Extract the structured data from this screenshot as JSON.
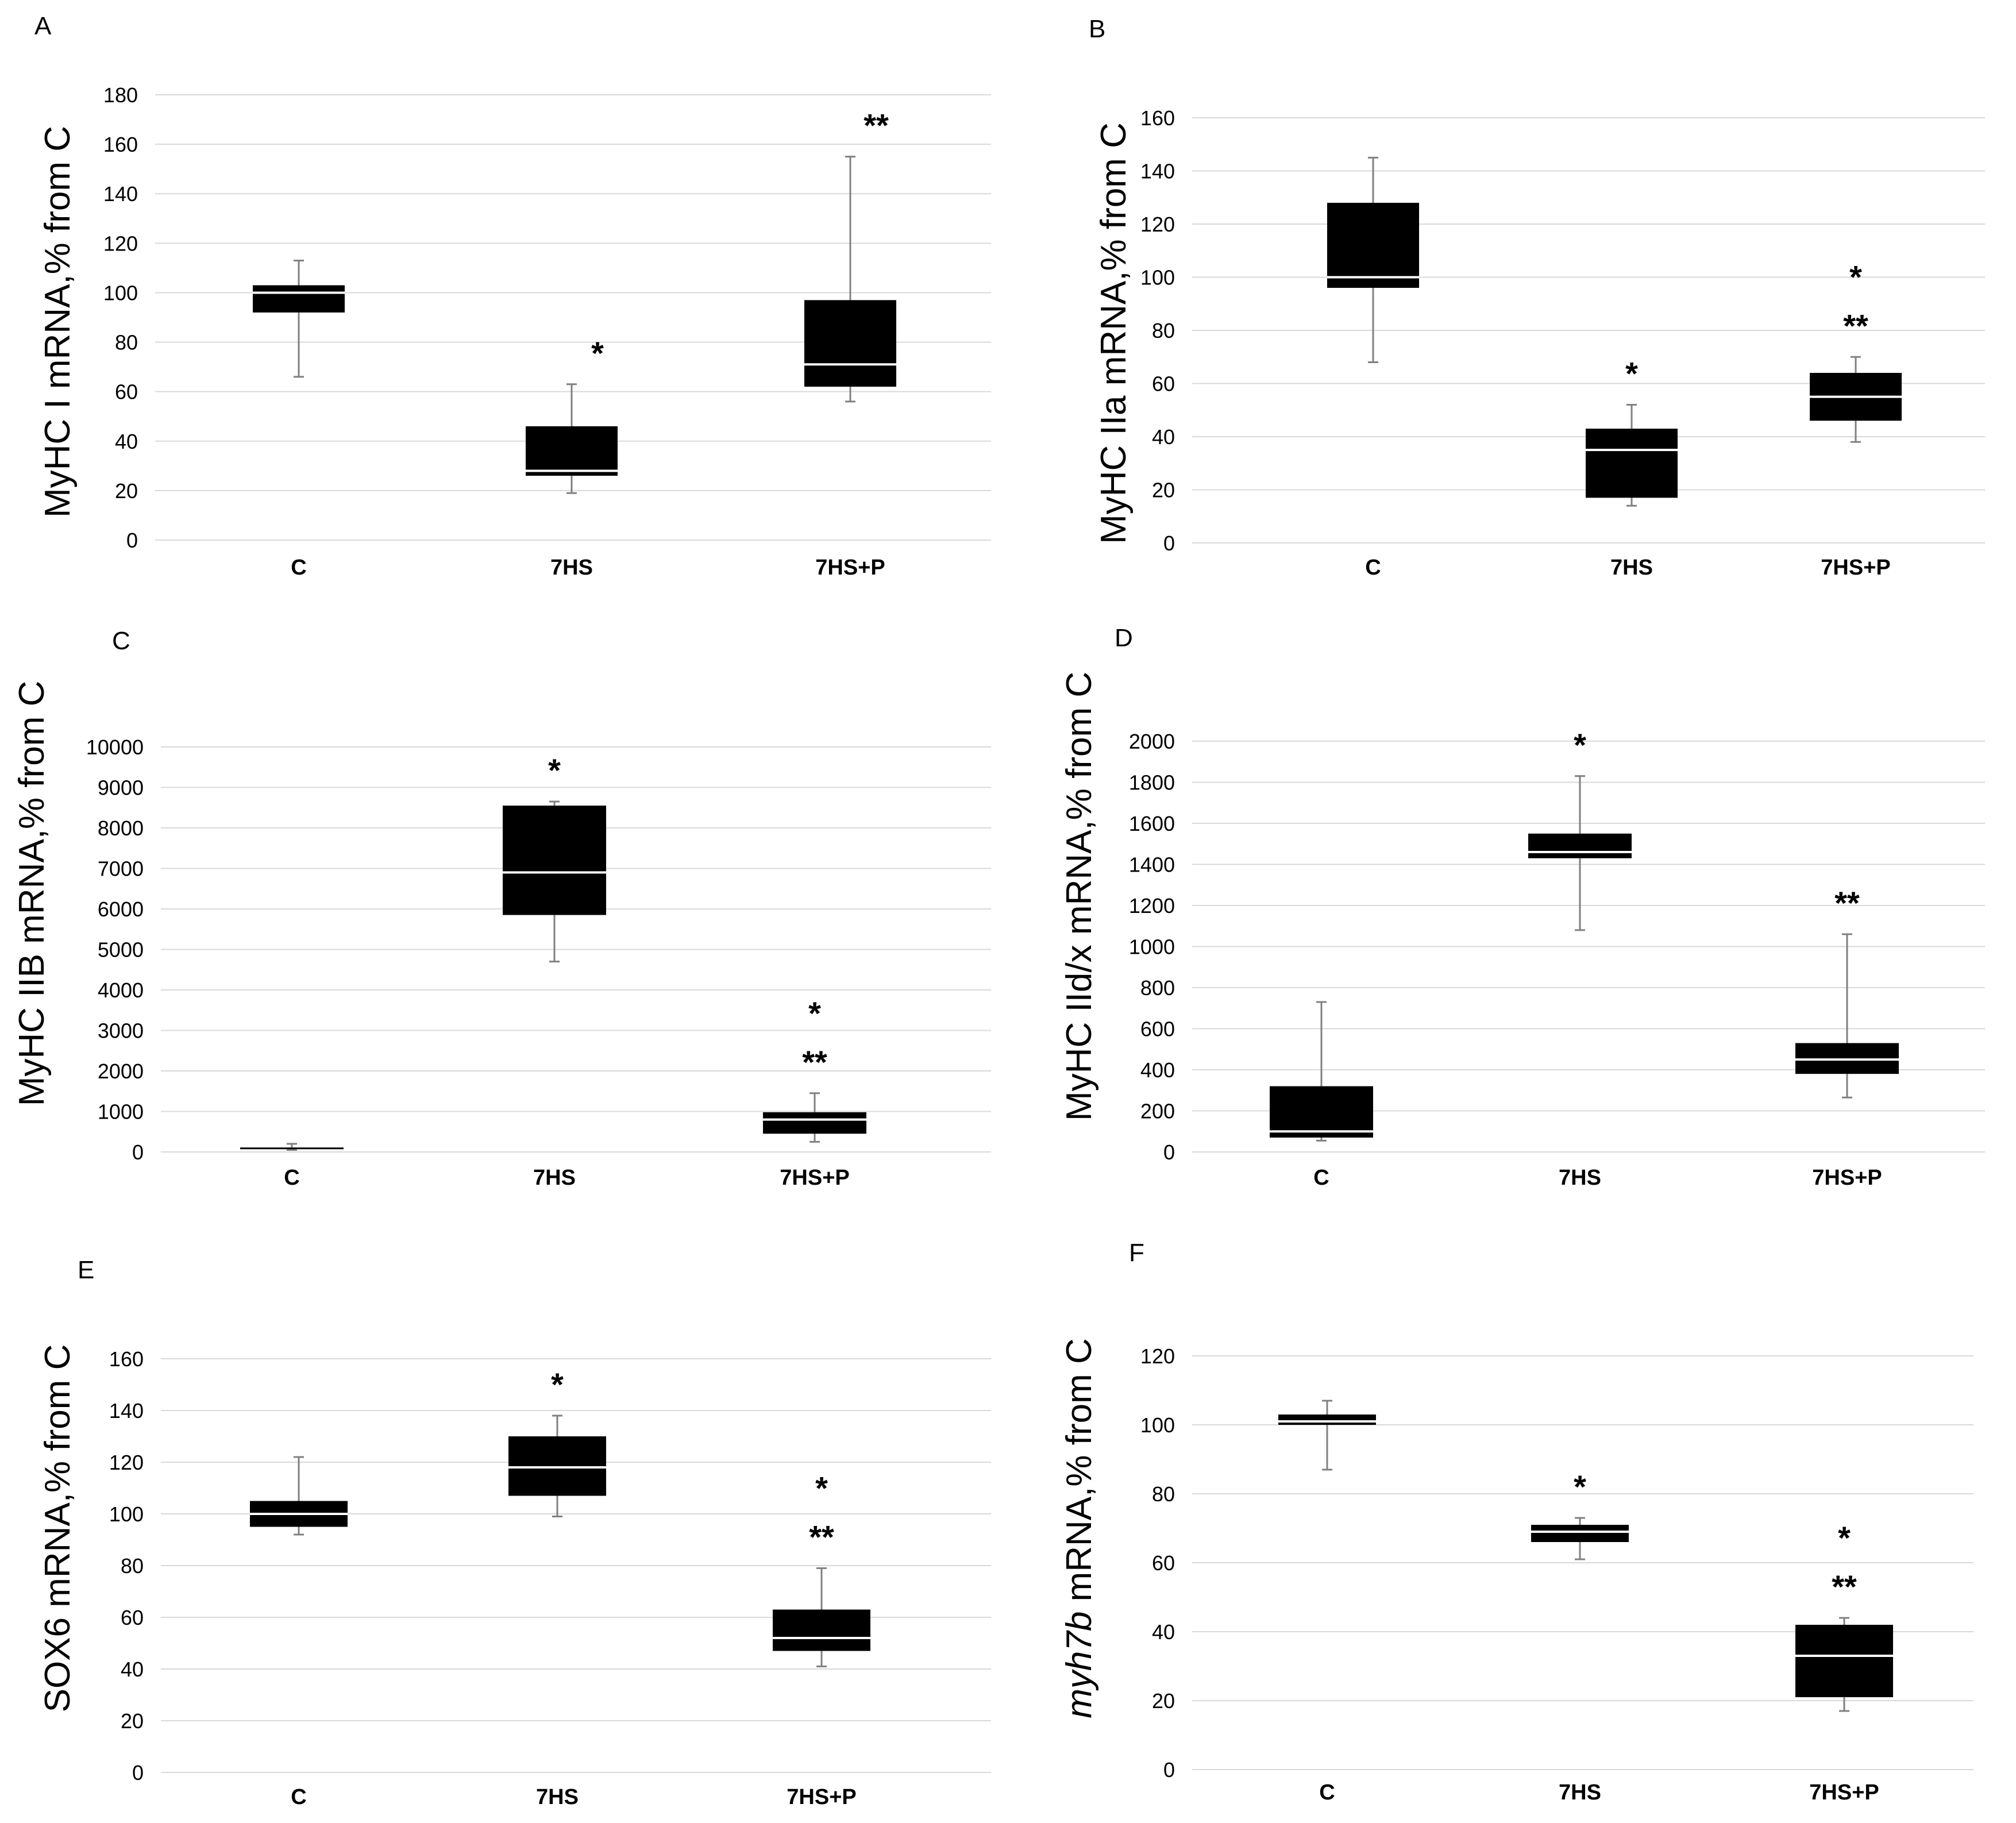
{
  "figure": {
    "background": "#ffffff",
    "box_color": "#000000",
    "median_color": "#ffffff",
    "grid_color": "#d9d9d9",
    "whisker_color": "#808080"
  },
  "chart_data": [
    {
      "type": "boxplot",
      "panel_label": "A",
      "ylabel": "MyHC I mRNA,% from C",
      "ylabel_italic_prefix": "",
      "ylim": [
        0,
        180
      ],
      "yticks": [
        0,
        20,
        40,
        60,
        80,
        100,
        120,
        140,
        160,
        180
      ],
      "categories": [
        "C",
        "7HS",
        "7HS+P"
      ],
      "boxes": [
        {
          "min": 66,
          "q1": 92,
          "median": 100,
          "q3": 103,
          "max": 113,
          "annotations": []
        },
        {
          "min": 19,
          "q1": 26,
          "median": 28,
          "q3": 46,
          "max": 63,
          "annotations": [
            "*"
          ]
        },
        {
          "min": 56,
          "q1": 62,
          "median": 71,
          "q3": 97,
          "max": 155,
          "annotations": [
            "**"
          ]
        }
      ]
    },
    {
      "type": "boxplot",
      "panel_label": "B",
      "ylabel": "MyHC IIa mRNA,% from C",
      "ylabel_italic_prefix": "",
      "ylim": [
        0,
        160
      ],
      "yticks": [
        0,
        20,
        40,
        60,
        80,
        100,
        120,
        140,
        160
      ],
      "categories": [
        "C",
        "7HS",
        "7HS+P"
      ],
      "boxes": [
        {
          "min": 68,
          "q1": 96,
          "median": 100,
          "q3": 128,
          "max": 145,
          "annotations": []
        },
        {
          "min": 14,
          "q1": 17,
          "median": 35,
          "q3": 43,
          "max": 52,
          "annotations": [
            "*"
          ]
        },
        {
          "min": 38,
          "q1": 46,
          "median": 55,
          "q3": 64,
          "max": 70,
          "annotations": [
            "*",
            "**"
          ]
        }
      ]
    },
    {
      "type": "boxplot",
      "panel_label": "C",
      "ylabel": "MyHC IIB mRNA,% from C",
      "ylabel_italic_prefix": "",
      "ylim": [
        0,
        10000
      ],
      "yticks": [
        0,
        1000,
        2000,
        3000,
        4000,
        5000,
        6000,
        7000,
        8000,
        9000,
        10000
      ],
      "categories": [
        "C",
        "7HS",
        "7HS+P"
      ],
      "boxes": [
        {
          "min": 50,
          "q1": 80,
          "median": 100,
          "q3": 110,
          "max": 200,
          "annotations": []
        },
        {
          "min": 4700,
          "q1": 5850,
          "median": 6900,
          "q3": 8550,
          "max": 8650,
          "annotations": [
            "*"
          ]
        },
        {
          "min": 250,
          "q1": 450,
          "median": 800,
          "q3": 980,
          "max": 1450,
          "annotations": [
            "*",
            "**"
          ]
        }
      ]
    },
    {
      "type": "boxplot",
      "panel_label": "D",
      "ylabel": "MyHC IId/x mRNA,% from C",
      "ylabel_italic_prefix": "",
      "ylim": [
        0,
        2000
      ],
      "yticks": [
        0,
        200,
        400,
        600,
        800,
        1000,
        1200,
        1400,
        1600,
        1800,
        2000
      ],
      "categories": [
        "C",
        "7HS",
        "7HS+P"
      ],
      "boxes": [
        {
          "min": 55,
          "q1": 70,
          "median": 100,
          "q3": 320,
          "max": 730,
          "annotations": []
        },
        {
          "min": 1080,
          "q1": 1430,
          "median": 1460,
          "q3": 1550,
          "max": 1830,
          "annotations": [
            "*"
          ]
        },
        {
          "min": 265,
          "q1": 380,
          "median": 450,
          "q3": 530,
          "max": 1060,
          "annotations": [
            "**"
          ]
        }
      ]
    },
    {
      "type": "boxplot",
      "panel_label": "E",
      "ylabel": "SOX6 mRNA,% from C",
      "ylabel_italic_prefix": "",
      "ylim": [
        0,
        160
      ],
      "yticks": [
        0,
        20,
        40,
        60,
        80,
        100,
        120,
        140,
        160
      ],
      "categories": [
        "C",
        "7HS",
        "7HS+P"
      ],
      "boxes": [
        {
          "min": 92,
          "q1": 95,
          "median": 100,
          "q3": 105,
          "max": 122,
          "annotations": []
        },
        {
          "min": 99,
          "q1": 107,
          "median": 118,
          "q3": 130,
          "max": 138,
          "annotations": [
            "*"
          ]
        },
        {
          "min": 41,
          "q1": 47,
          "median": 52,
          "q3": 63,
          "max": 79,
          "annotations": [
            "*",
            "**"
          ]
        }
      ]
    },
    {
      "type": "boxplot",
      "panel_label": "F",
      "ylabel": " mRNA,% from C",
      "ylabel_italic_prefix": "myh7b",
      "ylim": [
        0,
        120
      ],
      "yticks": [
        0,
        20,
        40,
        60,
        80,
        100,
        120
      ],
      "categories": [
        "C",
        "7HS",
        "7HS+P"
      ],
      "boxes": [
        {
          "min": 87,
          "q1": 100,
          "median": 101,
          "q3": 103,
          "max": 107,
          "annotations": []
        },
        {
          "min": 61,
          "q1": 66,
          "median": 69,
          "q3": 71,
          "max": 73,
          "annotations": [
            "*"
          ]
        },
        {
          "min": 17,
          "q1": 21,
          "median": 33,
          "q3": 42,
          "max": 44,
          "annotations": [
            "*",
            "**"
          ]
        }
      ]
    }
  ]
}
